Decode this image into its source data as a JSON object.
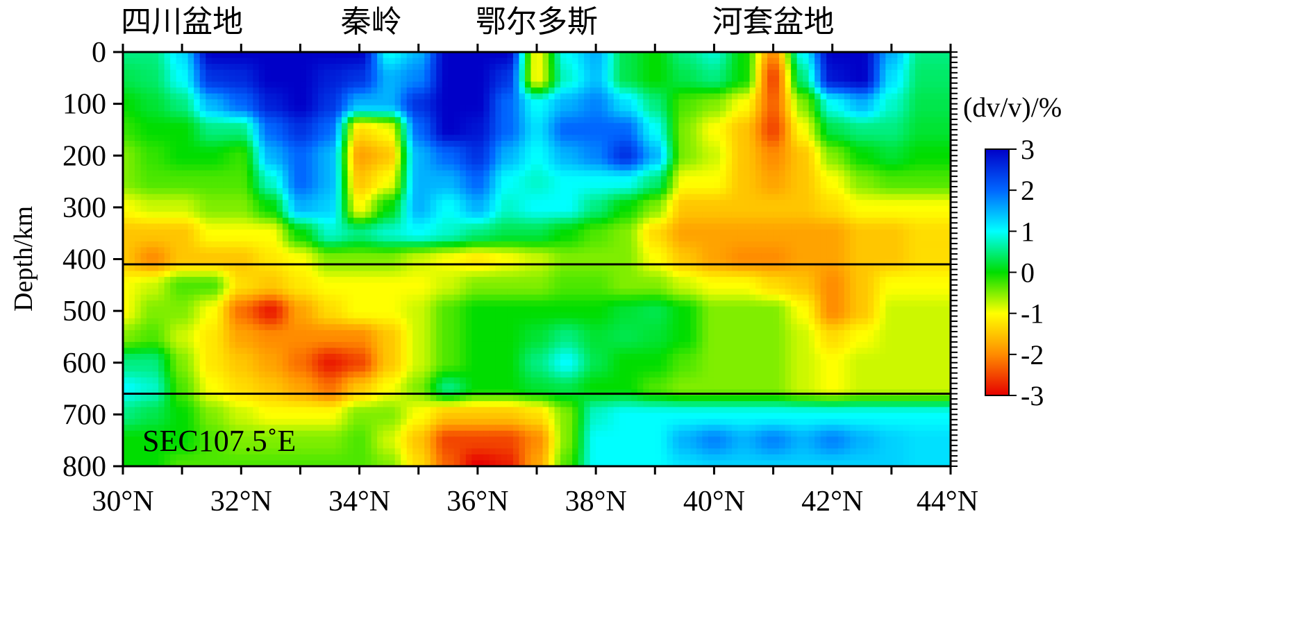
{
  "chart_data": {
    "type": "heatmap",
    "section_label": "SEC107.5˚E",
    "xlabel": "",
    "ylabel": "Depth/km",
    "colorbar_label": "(dv/v)/%",
    "x_unit_suffix": "°N",
    "xlim": [
      30,
      44
    ],
    "ylim": [
      0,
      800
    ],
    "x_ticks": [
      30,
      32,
      34,
      36,
      38,
      40,
      42,
      44
    ],
    "x_tick_labels": [
      "30°N",
      "32°N",
      "34°N",
      "36°N",
      "38°N",
      "40°N",
      "42°N",
      "44°N"
    ],
    "y_ticks": [
      0,
      100,
      200,
      300,
      400,
      500,
      600,
      700,
      800
    ],
    "y_tick_labels": [
      "0",
      "100",
      "200",
      "300",
      "400",
      "500",
      "600",
      "700",
      "800"
    ],
    "colorbar_range": [
      -3,
      3
    ],
    "colorbar_ticks": [
      "3",
      "2",
      "1",
      "0",
      "-1",
      "-2",
      "-3"
    ],
    "discontinuities_km": [
      410,
      660
    ],
    "region_labels": [
      {
        "text": "四川盆地",
        "lat": 31.0
      },
      {
        "text": "秦岭",
        "lat": 34.2
      },
      {
        "text": "鄂尔多斯",
        "lat": 37.0
      },
      {
        "text": "河套盆地",
        "lat": 41.0
      }
    ],
    "colormap": [
      "#e60000",
      "#ff8c00",
      "#ffff00",
      "#00dd00",
      "#00ffff",
      "#0066ff",
      "#0000c8"
    ],
    "anomaly_grid": {
      "lat": [
        30,
        30.5,
        31,
        31.5,
        32,
        32.5,
        33,
        33.5,
        34,
        34.5,
        35,
        35.5,
        36,
        36.5,
        37,
        37.5,
        38,
        38.5,
        39,
        39.5,
        40,
        40.5,
        41,
        41.5,
        42,
        42.5,
        43,
        43.5,
        44
      ],
      "depth": [
        0,
        50,
        100,
        150,
        200,
        250,
        300,
        350,
        400,
        450,
        500,
        550,
        600,
        650,
        700,
        750,
        800
      ],
      "values": [
        [
          0.5,
          0.5,
          1.2,
          3.0,
          3.0,
          3.0,
          3.0,
          3.0,
          3.0,
          1.0,
          1.5,
          3.0,
          3.0,
          3.0,
          -1.0,
          1.0,
          1.5,
          0.3,
          0.0,
          0.5,
          0.8,
          0.0,
          -2.0,
          1.0,
          3.0,
          3.0,
          1.5,
          0.5,
          0.5
        ],
        [
          0.3,
          0.4,
          1.0,
          2.5,
          2.6,
          3.0,
          3.0,
          2.7,
          2.5,
          1.5,
          1.8,
          3.0,
          3.0,
          2.5,
          -1.0,
          0.8,
          1.4,
          0.3,
          0.0,
          0.3,
          0.5,
          0.0,
          -2.5,
          0.5,
          2.8,
          3.0,
          1.2,
          0.4,
          0.4
        ],
        [
          0.0,
          0.2,
          0.5,
          1.5,
          2.0,
          2.7,
          3.0,
          2.5,
          1.5,
          1.5,
          2.5,
          3.0,
          3.0,
          2.0,
          1.0,
          1.5,
          1.8,
          1.2,
          0.5,
          -0.3,
          -0.5,
          -1.0,
          -2.3,
          -0.5,
          1.0,
          1.5,
          0.8,
          0.3,
          0.3
        ],
        [
          -0.2,
          0.0,
          0.0,
          0.5,
          0.5,
          2.0,
          2.5,
          2.0,
          -1.3,
          -1.0,
          2.0,
          3.0,
          2.8,
          2.0,
          1.2,
          2.0,
          2.0,
          2.0,
          1.0,
          -0.5,
          -1.0,
          -1.5,
          -2.5,
          -1.0,
          0.3,
          0.5,
          0.5,
          0.2,
          0.2
        ],
        [
          -0.5,
          -0.2,
          0.0,
          0.0,
          -0.2,
          1.5,
          2.0,
          1.5,
          -1.8,
          -1.5,
          1.5,
          2.0,
          2.5,
          1.5,
          1.0,
          1.5,
          1.8,
          2.5,
          1.5,
          -0.5,
          -0.8,
          -1.5,
          -2.0,
          -1.5,
          -0.5,
          0.0,
          0.2,
          0.0,
          0.0
        ],
        [
          -0.5,
          -0.3,
          -0.3,
          -0.3,
          -0.3,
          0.8,
          2.0,
          1.5,
          -1.5,
          -1.0,
          1.5,
          1.5,
          2.0,
          1.0,
          0.8,
          1.0,
          1.0,
          1.0,
          0.5,
          -1.0,
          -1.0,
          -1.5,
          -1.8,
          -1.5,
          -1.0,
          -0.5,
          -0.3,
          -0.3,
          -0.3
        ],
        [
          -1.0,
          -0.8,
          -0.8,
          -0.5,
          -0.5,
          0.0,
          1.5,
          1.3,
          -1.0,
          0.0,
          1.5,
          1.0,
          1.5,
          0.8,
          1.0,
          1.0,
          0.5,
          0.0,
          -0.5,
          -1.5,
          -1.5,
          -1.5,
          -1.5,
          -1.5,
          -1.3,
          -1.0,
          -1.0,
          -1.0,
          -1.0
        ],
        [
          -1.5,
          -1.5,
          -1.5,
          -1.0,
          -1.0,
          -1.0,
          0.0,
          0.8,
          0.5,
          0.8,
          1.0,
          0.8,
          0.5,
          0.3,
          0.3,
          0.0,
          -0.3,
          -0.5,
          -1.3,
          -1.8,
          -1.8,
          -1.8,
          -1.8,
          -1.8,
          -1.8,
          -1.5,
          -1.5,
          -1.3,
          -1.3
        ],
        [
          -1.5,
          -2.0,
          -1.5,
          -1.5,
          -1.5,
          -1.2,
          -1.0,
          -0.5,
          -0.5,
          -0.5,
          -0.8,
          -1.0,
          -1.2,
          -1.0,
          -0.8,
          -0.5,
          -0.5,
          -0.5,
          -1.0,
          -1.5,
          -1.8,
          -2.0,
          -2.0,
          -1.8,
          -1.8,
          -1.5,
          -1.5,
          -1.3,
          -1.3
        ],
        [
          -1.0,
          -0.8,
          -0.3,
          -0.3,
          -1.3,
          -1.5,
          -1.2,
          -1.0,
          -1.0,
          -1.0,
          -1.0,
          -0.8,
          -0.5,
          -0.5,
          -0.5,
          -0.3,
          -0.3,
          -0.5,
          -0.5,
          -0.8,
          -1.0,
          -1.0,
          -1.3,
          -1.5,
          -2.0,
          -1.5,
          -1.0,
          -1.0,
          -1.0
        ],
        [
          -1.0,
          -0.5,
          -0.5,
          -1.0,
          -2.2,
          -2.8,
          -1.8,
          -1.3,
          -1.0,
          -1.0,
          -0.8,
          -0.3,
          0.0,
          0.0,
          0.0,
          0.0,
          0.0,
          0.2,
          0.3,
          0.0,
          -0.5,
          -0.5,
          -0.5,
          -1.0,
          -2.0,
          -1.5,
          -0.8,
          -0.8,
          -0.8
        ],
        [
          -0.5,
          -0.3,
          -0.8,
          -1.2,
          -1.8,
          -2.0,
          -2.0,
          -2.0,
          -2.0,
          -1.5,
          -0.8,
          -0.3,
          0.0,
          0.0,
          0.2,
          0.5,
          0.2,
          0.3,
          0.2,
          0.0,
          -0.5,
          -0.5,
          -0.5,
          -0.8,
          -1.3,
          -1.0,
          -0.8,
          -0.8,
          -0.8
        ],
        [
          0.5,
          0.5,
          -0.5,
          -1.2,
          -1.5,
          -1.8,
          -2.2,
          -2.8,
          -2.5,
          -1.5,
          -0.8,
          -0.3,
          0.0,
          0.0,
          0.5,
          1.0,
          0.3,
          0.0,
          0.0,
          -0.3,
          -0.5,
          -0.5,
          -0.5,
          -0.8,
          -1.0,
          -0.8,
          -0.8,
          -0.8,
          -0.8
        ],
        [
          1.0,
          0.8,
          -0.3,
          -1.0,
          -1.3,
          -1.5,
          -1.8,
          -2.2,
          -1.5,
          -1.0,
          -0.5,
          0.5,
          0.0,
          0.0,
          0.2,
          0.3,
          0.0,
          0.0,
          -0.3,
          -0.5,
          -0.5,
          -0.5,
          -0.5,
          -0.8,
          -1.0,
          -0.8,
          -0.8,
          -0.8,
          -0.8
        ],
        [
          0.5,
          0.3,
          0.0,
          -0.5,
          -0.8,
          -1.0,
          -1.0,
          -1.0,
          -0.5,
          -0.5,
          -1.0,
          -1.5,
          -1.5,
          -1.5,
          -1.3,
          -0.5,
          0.8,
          1.0,
          1.0,
          1.0,
          1.0,
          1.0,
          1.0,
          1.0,
          1.0,
          1.0,
          1.0,
          1.0,
          1.0
        ],
        [
          0.0,
          0.0,
          0.0,
          -0.3,
          -0.5,
          -0.5,
          -0.5,
          -0.5,
          -0.3,
          -0.8,
          -1.5,
          -2.5,
          -2.5,
          -2.5,
          -2.0,
          -0.5,
          1.0,
          1.0,
          1.0,
          1.5,
          1.8,
          1.5,
          1.8,
          1.5,
          1.8,
          1.5,
          1.3,
          1.2,
          1.2
        ],
        [
          0.0,
          0.0,
          -0.3,
          -0.3,
          -0.3,
          -0.3,
          -0.3,
          -0.3,
          -0.3,
          -0.5,
          -1.3,
          -2.3,
          -3.0,
          -2.8,
          -1.8,
          -0.3,
          1.0,
          1.0,
          1.0,
          1.2,
          1.3,
          1.3,
          1.3,
          1.3,
          1.3,
          1.3,
          1.3,
          1.2,
          1.2
        ]
      ]
    }
  }
}
